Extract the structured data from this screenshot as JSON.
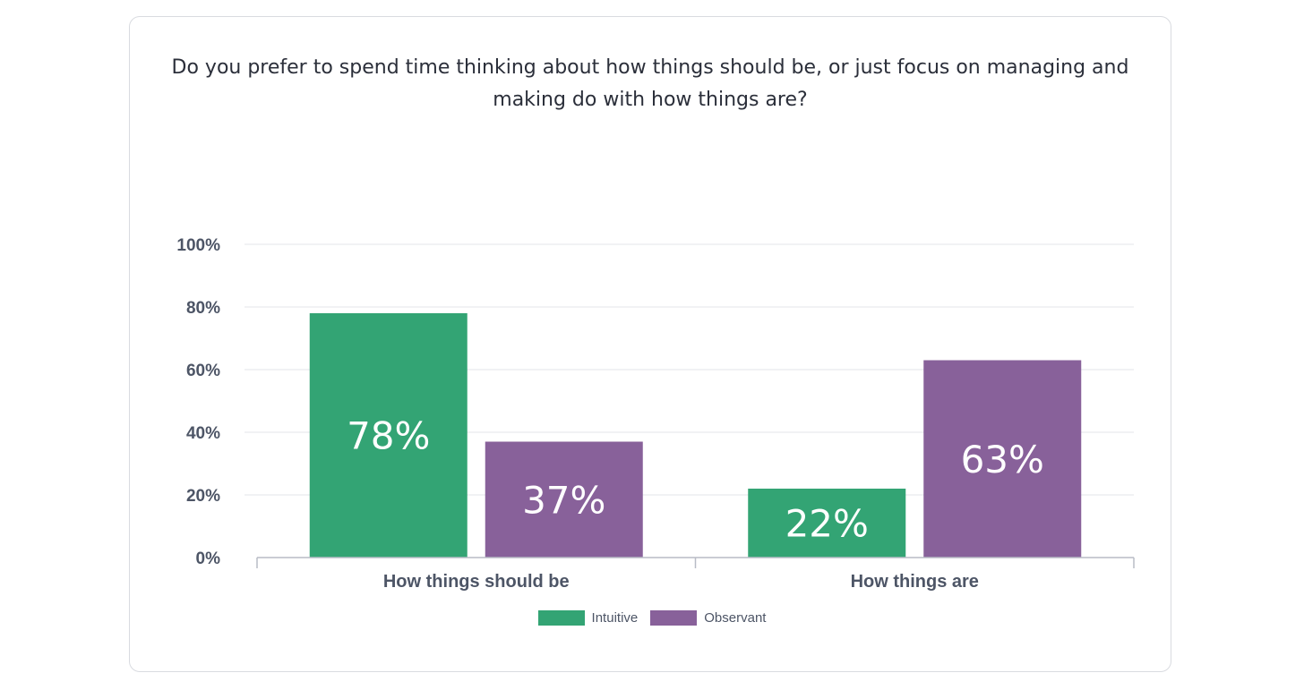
{
  "chart_data": {
    "type": "bar",
    "title": "Do you prefer to spend time thinking about how things should be, or just focus on managing and making do with how things are?",
    "categories": [
      "How things should be",
      "How things are"
    ],
    "series": [
      {
        "name": "Intuitive",
        "values": [
          78,
          22
        ],
        "color": "#33a474",
        "labels": [
          "78%",
          "22%"
        ]
      },
      {
        "name": "Observant",
        "values": [
          37,
          63
        ],
        "color": "#88619a",
        "labels": [
          "37%",
          "63%"
        ]
      }
    ],
    "ylim": [
      0,
      100
    ],
    "yticks": [
      0,
      20,
      40,
      60,
      80,
      100
    ],
    "ytick_labels": [
      "0%",
      "20%",
      "40%",
      "60%",
      "80%",
      "100%"
    ],
    "xlabel": "",
    "ylabel": "",
    "grid": true,
    "legend_position": "bottom-center"
  }
}
